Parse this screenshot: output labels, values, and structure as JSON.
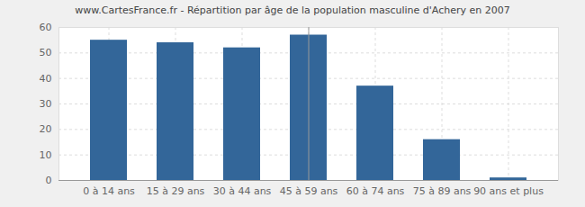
{
  "chart_data": {
    "type": "bar",
    "title": "www.CartesFrance.fr - Répartition par âge de la population masculine d'Achery en 2007",
    "categories": [
      "0 à 14 ans",
      "15 à 29 ans",
      "30 à 44 ans",
      "45 à 59 ans",
      "60 à 74 ans",
      "75 à 89 ans",
      "90 ans et plus"
    ],
    "values": [
      55,
      54,
      52,
      57,
      37,
      16,
      1
    ],
    "color": "#336699",
    "ylim": [
      0,
      60
    ],
    "yticks": [
      0,
      10,
      20,
      30,
      40,
      50,
      60
    ],
    "grid": true
  }
}
